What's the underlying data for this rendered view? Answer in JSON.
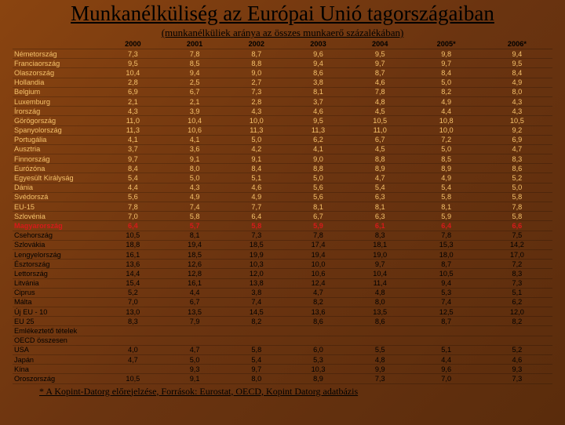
{
  "title": "Munkanélküliség az Európai Unió tagországaiban",
  "subtitle": "(munkanélküliek aránya az összes munkaerő százalékában)",
  "footnote": "* A Kopint-Datorg előrejelzése, Források: Eurostat, OECD, Kopint Datorg adatbázis",
  "table": {
    "columns": [
      "",
      "2000",
      "2001",
      "2002",
      "2003",
      "2004",
      "2005*",
      "2006*"
    ],
    "rows": [
      {
        "style": "light",
        "cells": [
          "Németország",
          "7,3",
          "7,8",
          "8,7",
          "9,6",
          "9,5",
          "9,8",
          "9,4"
        ]
      },
      {
        "style": "light",
        "cells": [
          "Franciaország",
          "9,5",
          "8,5",
          "8,8",
          "9,4",
          "9,7",
          "9,7",
          "9,5"
        ]
      },
      {
        "style": "light",
        "cells": [
          "Olaszország",
          "10,4",
          "9,4",
          "9,0",
          "8,6",
          "8,7",
          "8,4",
          "8,4"
        ]
      },
      {
        "style": "light",
        "cells": [
          "Hollandia",
          "2,8",
          "2,5",
          "2,7",
          "3,8",
          "4,6",
          "5,0",
          "4,9"
        ]
      },
      {
        "style": "light",
        "cells": [
          "Belgium",
          "6,9",
          "6,7",
          "7,3",
          "8,1",
          "7,8",
          "8,2",
          "8,0"
        ]
      },
      {
        "style": "light",
        "cells": [
          "Luxemburg",
          "2,1",
          "2,1",
          "2,8",
          "3,7",
          "4,8",
          "4,9",
          "4,3"
        ]
      },
      {
        "style": "light",
        "cells": [
          "Írország",
          "4,3",
          "3,9",
          "4,3",
          "4,6",
          "4,5",
          "4,4",
          "4,3"
        ]
      },
      {
        "style": "light",
        "cells": [
          "Görögország",
          "11,0",
          "10,4",
          "10,0",
          "9,5",
          "10,5",
          "10,8",
          "10,5"
        ]
      },
      {
        "style": "light",
        "cells": [
          "Spanyolország",
          "11,3",
          "10,6",
          "11,3",
          "11,3",
          "11,0",
          "10,0",
          "9,2"
        ]
      },
      {
        "style": "light",
        "cells": [
          "Portugália",
          "4,1",
          "4,1",
          "5,0",
          "6,2",
          "6,7",
          "7,2",
          "6,9"
        ]
      },
      {
        "style": "light",
        "cells": [
          "Ausztria",
          "3,7",
          "3,6",
          "4,2",
          "4,1",
          "4,5",
          "5,0",
          "4,7"
        ]
      },
      {
        "style": "light",
        "cells": [
          "Finnország",
          "9,7",
          "9,1",
          "9,1",
          "9,0",
          "8,8",
          "8,5",
          "8,3"
        ]
      },
      {
        "style": "light",
        "cells": [
          "Eurózóna",
          "8,4",
          "8,0",
          "8,4",
          "8,8",
          "8,9",
          "8,9",
          "8,6"
        ]
      },
      {
        "style": "light",
        "cells": [
          "Egyesült Királyság",
          "5,4",
          "5,0",
          "5,1",
          "5,0",
          "4,7",
          "4,9",
          "5,2"
        ]
      },
      {
        "style": "light",
        "cells": [
          "Dánia",
          "4,4",
          "4,3",
          "4,6",
          "5,6",
          "5,4",
          "5,4",
          "5,0"
        ]
      },
      {
        "style": "light",
        "cells": [
          "Svédorszá",
          "5,6",
          "4,9",
          "4,9",
          "5,6",
          "6,3",
          "5,8",
          "5,8"
        ]
      },
      {
        "style": "light",
        "cells": [
          "EU-15",
          "7,8",
          "7,4",
          "7,7",
          "8,1",
          "8,1",
          "8,1",
          "7,8"
        ]
      },
      {
        "style": "light",
        "cells": [
          "Szlovénia",
          "7,0",
          "5,8",
          "6,4",
          "6,7",
          "6,3",
          "5,9",
          "5,8"
        ]
      },
      {
        "style": "highlight",
        "cells": [
          "Magyarország",
          "6,4",
          "5,7",
          "5,8",
          "5,9",
          "6,1",
          "6,4",
          "6,6"
        ]
      },
      {
        "style": "dark",
        "cells": [
          "Csehország",
          "10,5",
          "8,1",
          "7,3",
          "7,8",
          "8,3",
          "7,8",
          "7,5"
        ]
      },
      {
        "style": "dark",
        "cells": [
          "Szlovákia",
          "18,8",
          "19,4",
          "18,5",
          "17,4",
          "18,1",
          "15,3",
          "14,2"
        ]
      },
      {
        "style": "dark",
        "cells": [
          "Lengyelország",
          "16,1",
          "18,5",
          "19,9",
          "19,4",
          "19,0",
          "18,0",
          "17,0"
        ]
      },
      {
        "style": "dark",
        "cells": [
          "Észtország",
          "13,6",
          "12,6",
          "10,3",
          "10,0",
          "9,7",
          "8,7",
          "7,2"
        ]
      },
      {
        "style": "dark",
        "cells": [
          "Lettország",
          "14,4",
          "12,8",
          "12,0",
          "10,6",
          "10,4",
          "10,5",
          "8,3"
        ]
      },
      {
        "style": "dark",
        "cells": [
          "Litvánia",
          "15,4",
          "16,1",
          "13,8",
          "12,4",
          "11,4",
          "9,4",
          "7,3"
        ]
      },
      {
        "style": "dark",
        "cells": [
          "Ciprus",
          "5,2",
          "4,4",
          "3,8",
          "4,7",
          "4,8",
          "5,3",
          "5,1"
        ]
      },
      {
        "style": "dark",
        "cells": [
          "Málta",
          "7,0",
          "6,7",
          "7,4",
          "8,2",
          "8,0",
          "7,4",
          "6,2"
        ]
      },
      {
        "style": "dark",
        "cells": [
          "Új EU - 10",
          "13,0",
          "13,5",
          "14,5",
          "13,6",
          "13,5",
          "12,5",
          "12,0"
        ]
      },
      {
        "style": "dark",
        "cells": [
          "EU 25",
          "8,3",
          "7,9",
          "8,2",
          "8,6",
          "8,6",
          "8,7",
          "8,2"
        ]
      },
      {
        "style": "dark",
        "cells": [
          "Emlékeztető tételek",
          "",
          "",
          "",
          "",
          "",
          "",
          ""
        ]
      },
      {
        "style": "dark",
        "cells": [
          "OECD összesen",
          "",
          "",
          "",
          "",
          "",
          "",
          ""
        ]
      },
      {
        "style": "dark",
        "cells": [
          "USA",
          "4,0",
          "4,7",
          "5,8",
          "6,0",
          "5,5",
          "5,1",
          "5,2"
        ]
      },
      {
        "style": "dark",
        "cells": [
          "Japán",
          "4,7",
          "5,0",
          "5,4",
          "5,3",
          "4,8",
          "4,4",
          "4,6"
        ]
      },
      {
        "style": "dark",
        "cells": [
          "Kína",
          "",
          "9,3",
          "9,7",
          "10,3",
          "9,9",
          "9,6",
          "9,3"
        ]
      },
      {
        "style": "dark",
        "cells": [
          "Oroszország",
          "10,5",
          "9,1",
          "8,0",
          "8,9",
          "7,3",
          "7,0",
          "7,3"
        ]
      }
    ]
  }
}
